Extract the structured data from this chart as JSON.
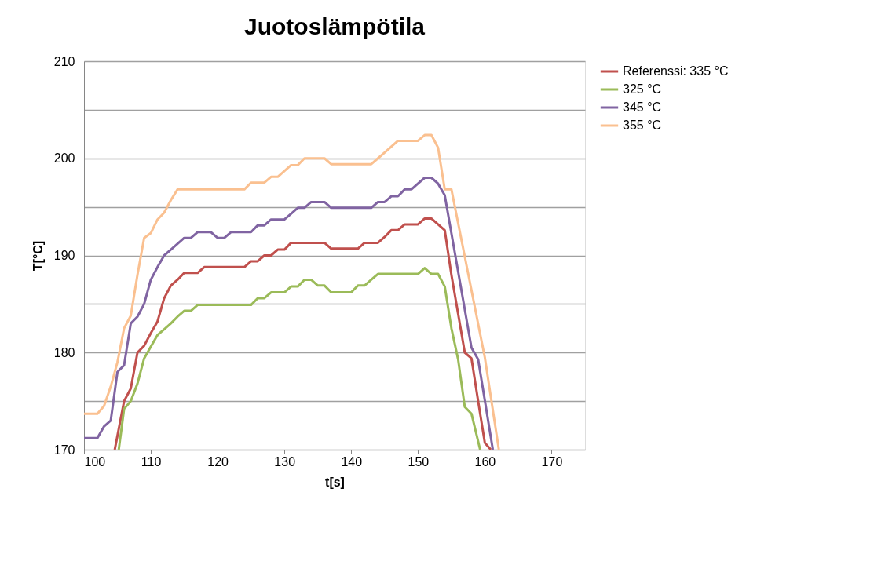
{
  "chart_data": {
    "type": "line",
    "title": "Juotoslämpötila",
    "xlabel": "t[s]",
    "ylabel": "T[°C]",
    "xlim": [
      100,
      175
    ],
    "xticks": [
      100,
      110,
      120,
      130,
      140,
      150,
      160,
      170
    ],
    "ylim": [
      170,
      210
    ],
    "yticks": [
      170,
      {
        "value": 175,
        "label": null
      },
      180,
      {
        "value": 185,
        "label": null
      },
      190,
      {
        "value": 195,
        "label": null
      },
      200,
      {
        "value": 205,
        "label": null
      },
      210
    ],
    "grid": "y",
    "legend": "right",
    "marker": "none",
    "line_style": "solid",
    "series": [
      {
        "name": "Referenssi: 335 °C",
        "color": "#c0504d",
        "x": [
          104.6,
          106,
          107,
          108,
          109,
          110,
          111,
          112,
          113,
          114,
          115,
          117,
          118,
          124,
          125,
          126,
          127,
          128,
          129,
          130,
          131,
          136,
          137,
          141,
          142,
          144,
          145,
          146,
          147,
          148,
          150,
          151,
          152,
          153,
          154,
          155,
          156,
          157,
          158,
          159,
          160,
          160.9
        ],
        "values": [
          170,
          175,
          176.3,
          180,
          180.7,
          182,
          183.2,
          185.6,
          186.9,
          187.5,
          188.2,
          188.2,
          188.8,
          188.8,
          189.4,
          189.4,
          190,
          190,
          190.6,
          190.6,
          191.3,
          191.3,
          190.7,
          190.7,
          191.3,
          191.3,
          191.9,
          192.6,
          192.6,
          193.2,
          193.2,
          193.8,
          193.8,
          193.2,
          192.6,
          188,
          184,
          180,
          179.4,
          175,
          170.7,
          170
        ]
      },
      {
        "name": "325 °C",
        "color": "#9bbb59",
        "x": [
          105.2,
          106,
          107,
          108,
          109,
          110,
          111,
          112,
          113,
          114,
          115,
          116,
          117,
          125,
          126,
          127,
          128,
          130,
          131,
          132,
          133,
          134,
          135,
          136,
          137,
          140,
          141,
          142,
          143,
          144,
          150,
          151,
          152,
          153,
          154,
          155,
          156,
          157,
          158,
          159.3
        ],
        "values": [
          170,
          174.2,
          175,
          176.8,
          179.4,
          180.6,
          181.8,
          182.4,
          183,
          183.7,
          184.3,
          184.3,
          184.9,
          184.9,
          185.6,
          185.6,
          186.2,
          186.2,
          186.8,
          186.8,
          187.5,
          187.5,
          186.9,
          186.9,
          186.2,
          186.2,
          186.9,
          186.9,
          187.5,
          188.1,
          188.1,
          188.7,
          188.1,
          188.1,
          186.8,
          182.5,
          179.3,
          174.4,
          173.7,
          170
        ]
      },
      {
        "name": "345 °C",
        "color": "#8064a2",
        "x": [
          100,
          102,
          103,
          104,
          105,
          106,
          107,
          108,
          109,
          110,
          111,
          112,
          113,
          114,
          115,
          116,
          117,
          119,
          120,
          121,
          122,
          125,
          126,
          127,
          128,
          130,
          131,
          132,
          133,
          134,
          136,
          137,
          143,
          144,
          145,
          146,
          147,
          148,
          149,
          150,
          151,
          152,
          153,
          154,
          158,
          159,
          161.2
        ],
        "values": [
          171.2,
          171.2,
          172.4,
          173,
          178,
          178.7,
          183,
          183.7,
          185,
          187.5,
          188.8,
          190,
          190.6,
          191.2,
          191.8,
          191.8,
          192.4,
          192.4,
          191.8,
          191.8,
          192.4,
          192.4,
          193.1,
          193.1,
          193.7,
          193.7,
          194.3,
          194.9,
          194.9,
          195.5,
          195.5,
          194.9,
          194.9,
          195.5,
          195.5,
          196.1,
          196.1,
          196.8,
          196.8,
          197.4,
          198,
          198,
          197.4,
          196.2,
          180.5,
          179.3,
          170
        ]
      },
      {
        "name": "355 °C",
        "color": "#fac090",
        "x": [
          100,
          102,
          103,
          104,
          105,
          106,
          107,
          108,
          109,
          110,
          111,
          112,
          113,
          114,
          124,
          125,
          127,
          128,
          129,
          130,
          131,
          132,
          133,
          136,
          137,
          143,
          144,
          145,
          146,
          147,
          150,
          151,
          152,
          153,
          154,
          155,
          160,
          162.1
        ],
        "values": [
          173.7,
          173.7,
          174.5,
          176.5,
          179,
          182.5,
          183.8,
          188,
          191.8,
          192.3,
          193.7,
          194.4,
          195.7,
          196.8,
          196.8,
          197.5,
          197.5,
          198.1,
          198.1,
          198.7,
          199.3,
          199.3,
          200,
          200,
          199.4,
          199.4,
          200,
          200.6,
          201.2,
          201.8,
          201.8,
          202.4,
          202.4,
          201.1,
          196.8,
          196.8,
          179.5,
          170
        ]
      }
    ]
  }
}
